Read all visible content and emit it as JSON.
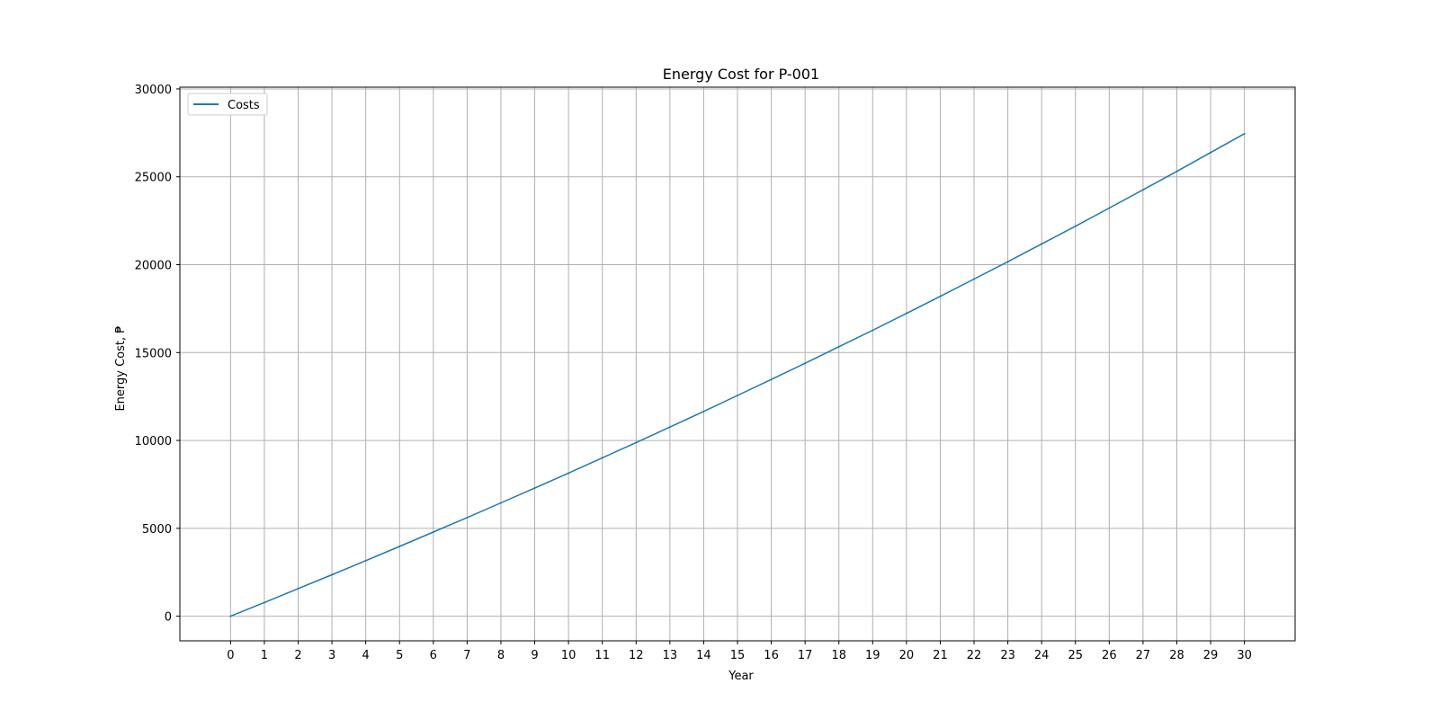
{
  "chart_data": {
    "type": "line",
    "title": "Energy Cost for P-001",
    "xlabel": "Year",
    "ylabel": "Energy Cost, ₱",
    "x": [
      0,
      1,
      2,
      3,
      4,
      5,
      6,
      7,
      8,
      9,
      10,
      11,
      12,
      13,
      14,
      15,
      16,
      17,
      18,
      19,
      20,
      21,
      22,
      23,
      24,
      25,
      26,
      27,
      28,
      29,
      30
    ],
    "xlim": [
      -1.5,
      31.5
    ],
    "ylim": [
      -1400,
      30100
    ],
    "yticks": [
      0,
      5000,
      10000,
      15000,
      20000,
      25000,
      30000
    ],
    "grid": true,
    "legend_position": "upper-left",
    "series": [
      {
        "name": "Costs",
        "color": "#1f77b4",
        "values": [
          0,
          780,
          1570,
          2360,
          3160,
          3970,
          4790,
          5610,
          6450,
          7290,
          8140,
          9010,
          9880,
          10760,
          11650,
          12560,
          13470,
          14390,
          15330,
          16270,
          17230,
          18200,
          19180,
          20170,
          21180,
          22190,
          23220,
          24260,
          25310,
          26380,
          27450
        ]
      }
    ]
  }
}
